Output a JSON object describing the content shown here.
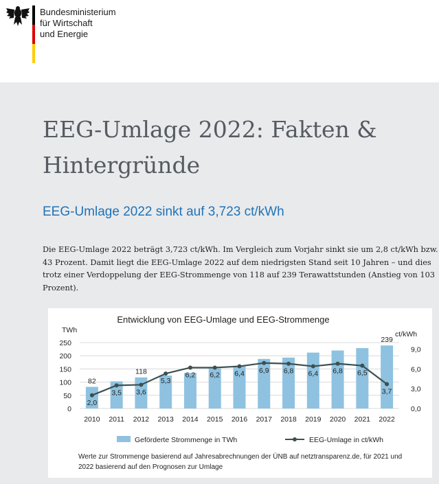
{
  "header": {
    "ministry_lines": [
      "Bundesministerium",
      "für Wirtschaft",
      "und Energie"
    ],
    "logo_icon": "federal-eagle-icon",
    "flag_colors": [
      "#000000",
      "#dd0000",
      "#ffcc00"
    ]
  },
  "article": {
    "title": "EEG-Umlage 2022: Fakten & Hintergründe",
    "subtitle": "EEG-Umlage 2022 sinkt auf 3,723 ct/kWh",
    "paragraph": "Die EEG-Umlage 2022 beträgt 3,723 ct/kWh. Im Vergleich zum Vorjahr sinkt sie um 2,8 ct/kWh bzw. 43 Prozent. Damit liegt die EEG-Umlage 2022 auf dem niedrigsten Stand seit 10 Jahren – und dies trotz einer Verdoppelung der EEG-Strommenge von 118 auf 239 Terawattstunden (Anstieg von 103 Prozent)."
  },
  "chart_data": {
    "type": "bar",
    "title": "Entwicklung von EEG-Umlage und EEG-Strommenge",
    "categories": [
      "2010",
      "2011",
      "2012",
      "2013",
      "2014",
      "2015",
      "2016",
      "2017",
      "2018",
      "2019",
      "2020",
      "2021",
      "2022"
    ],
    "left_axis": {
      "unit": "TWh",
      "ticks": [
        "0",
        "50",
        "100",
        "150",
        "200",
        "250"
      ],
      "range": [
        0,
        250
      ]
    },
    "right_axis": {
      "unit": "ct/kWh",
      "ticks": [
        "0,0",
        "3,0",
        "6,0",
        "9,0"
      ],
      "range": [
        0,
        10
      ]
    },
    "series": [
      {
        "name": "Geförderte Strommenge in TWh",
        "kind": "bar",
        "color": "#8ec2e0",
        "axis": "left",
        "values": [
          82,
          103,
          118,
          125,
          135,
          152,
          162,
          188,
          193,
          212,
          220,
          229,
          239
        ],
        "labels": [
          "82",
          "",
          "118",
          "",
          "",
          "",
          "",
          "",
          "",
          "",
          "",
          "",
          "239"
        ]
      },
      {
        "name": "EEG-Umlage in ct/kWh",
        "kind": "line",
        "color": "#3d4f50",
        "axis": "right",
        "values": [
          2.0,
          3.5,
          3.6,
          5.3,
          6.2,
          6.2,
          6.4,
          6.9,
          6.8,
          6.4,
          6.8,
          6.5,
          3.7
        ],
        "labels": [
          "2,0",
          "3,5",
          "3,6",
          "5,3",
          "6,2",
          "6,2",
          "6,4",
          "6,9",
          "6,8",
          "6,4",
          "6,8",
          "6,5",
          "3,7"
        ]
      }
    ],
    "legend_placement": "bottom",
    "footnote_lines": [
      "Werte zur Strommenge basierend auf Jahresabrechnungen der ÜNB auf netztransparenz.de, für 2021 und",
      "2022 basierend auf den Prognosen zur Umlage"
    ]
  }
}
